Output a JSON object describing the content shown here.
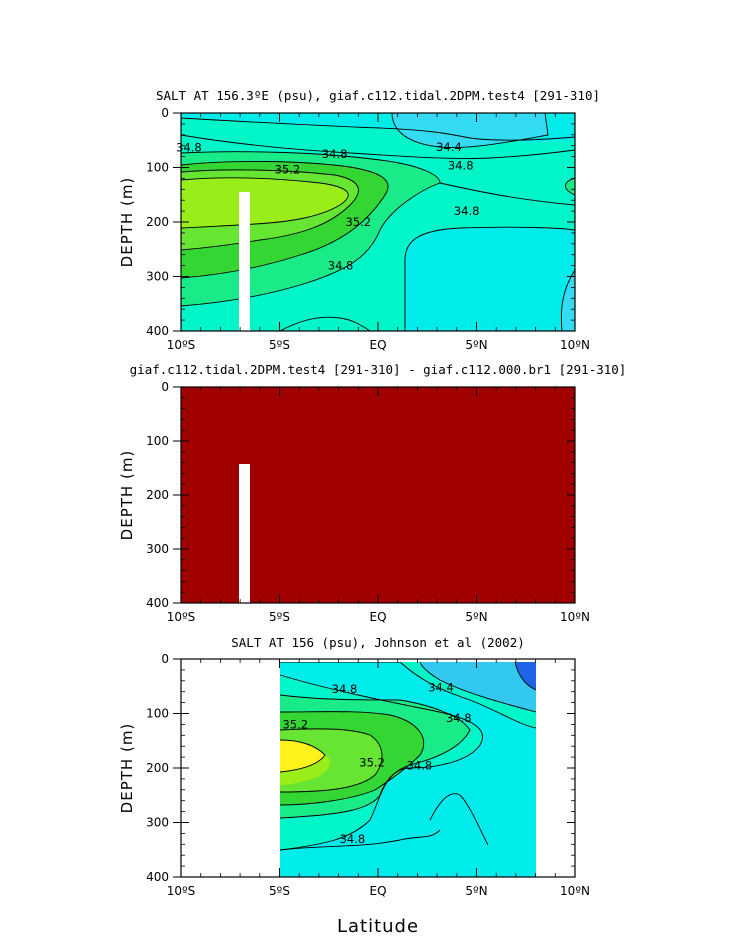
{
  "chart_data": [
    {
      "type": "contour",
      "title": "SALT AT 156.3ºE (psu), giaf.c112.tidal.2DPM.test4 [291-310]",
      "ylabel": "DEPTH (m)",
      "xlim": [
        -10,
        10
      ],
      "ylim": [
        400,
        0
      ],
      "x_ticks": [
        "10ºS",
        "5ºS",
        "EQ",
        "5ºN",
        "10ºN"
      ],
      "y_ticks": [
        "0",
        "100",
        "200",
        "300",
        "400"
      ],
      "contour_labels": [
        {
          "text": "34.8",
          "x": -9.6,
          "y": 63
        },
        {
          "text": "34.8",
          "x": -2.2,
          "y": 75
        },
        {
          "text": "34.4",
          "x": 3.6,
          "y": 62
        },
        {
          "text": "34.8",
          "x": 4.2,
          "y": 96
        },
        {
          "text": "35.2",
          "x": -4.6,
          "y": 104
        },
        {
          "text": "35.2",
          "x": -1.0,
          "y": 200
        },
        {
          "text": "34.8",
          "x": 4.5,
          "y": 180
        },
        {
          "text": "34.8",
          "x": -1.9,
          "y": 280
        }
      ],
      "levels": [
        34.4,
        34.6,
        34.8,
        35.0,
        35.2,
        35.4
      ],
      "colors": {
        "c34_2": "#33dcf2",
        "c34_4": "#00ecea",
        "c34_6": "#00f5c8",
        "c34_8": "#19eb88",
        "c35_0": "#33d633",
        "c35_2": "#66e533",
        "c35_4": "#99ee1a"
      }
    },
    {
      "type": "heatmap",
      "title": "giaf.c112.tidal.2DPM.test4 [291-310] - giaf.c112.000.br1 [291-310]",
      "ylabel": "DEPTH (m)",
      "xlim": [
        -10,
        10
      ],
      "ylim": [
        400,
        0
      ],
      "x_ticks": [
        "10ºS",
        "5ºS",
        "EQ",
        "5ºN",
        "10ºN"
      ],
      "y_ticks": [
        "0",
        "100",
        "200",
        "300",
        "400"
      ],
      "fill_color": "#a00000"
    },
    {
      "type": "contour",
      "title": "SALT AT 156 (psu), Johnson et al (2002)",
      "ylabel": "DEPTH (m)",
      "xlabel": "Latitude",
      "xlim": [
        -10,
        10
      ],
      "ylim": [
        400,
        0
      ],
      "data_extent_x": [
        -5,
        8
      ],
      "x_ticks": [
        "10ºS",
        "5ºS",
        "EQ",
        "5ºN",
        "10ºN"
      ],
      "y_ticks": [
        "0",
        "100",
        "200",
        "300",
        "400"
      ],
      "contour_labels": [
        {
          "text": "34.8",
          "x": -1.7,
          "y": 55
        },
        {
          "text": "34.4",
          "x": 3.2,
          "y": 52
        },
        {
          "text": "34.8",
          "x": 4.1,
          "y": 108
        },
        {
          "text": "35.2",
          "x": -4.2,
          "y": 120
        },
        {
          "text": "35.2",
          "x": -0.3,
          "y": 190
        },
        {
          "text": "34.8",
          "x": 2.1,
          "y": 195
        },
        {
          "text": "34.8",
          "x": -1.3,
          "y": 330
        }
      ],
      "colors": {
        "c34_0": "#1e64e6",
        "c34_2": "#33c8f0",
        "c34_4": "#00ecea",
        "c34_6": "#00f5c8",
        "c34_8": "#19eb88",
        "c35_0": "#33d633",
        "c35_2": "#66e533",
        "c35_4": "#99ee1a",
        "c35_6": "#fff21a"
      }
    }
  ]
}
